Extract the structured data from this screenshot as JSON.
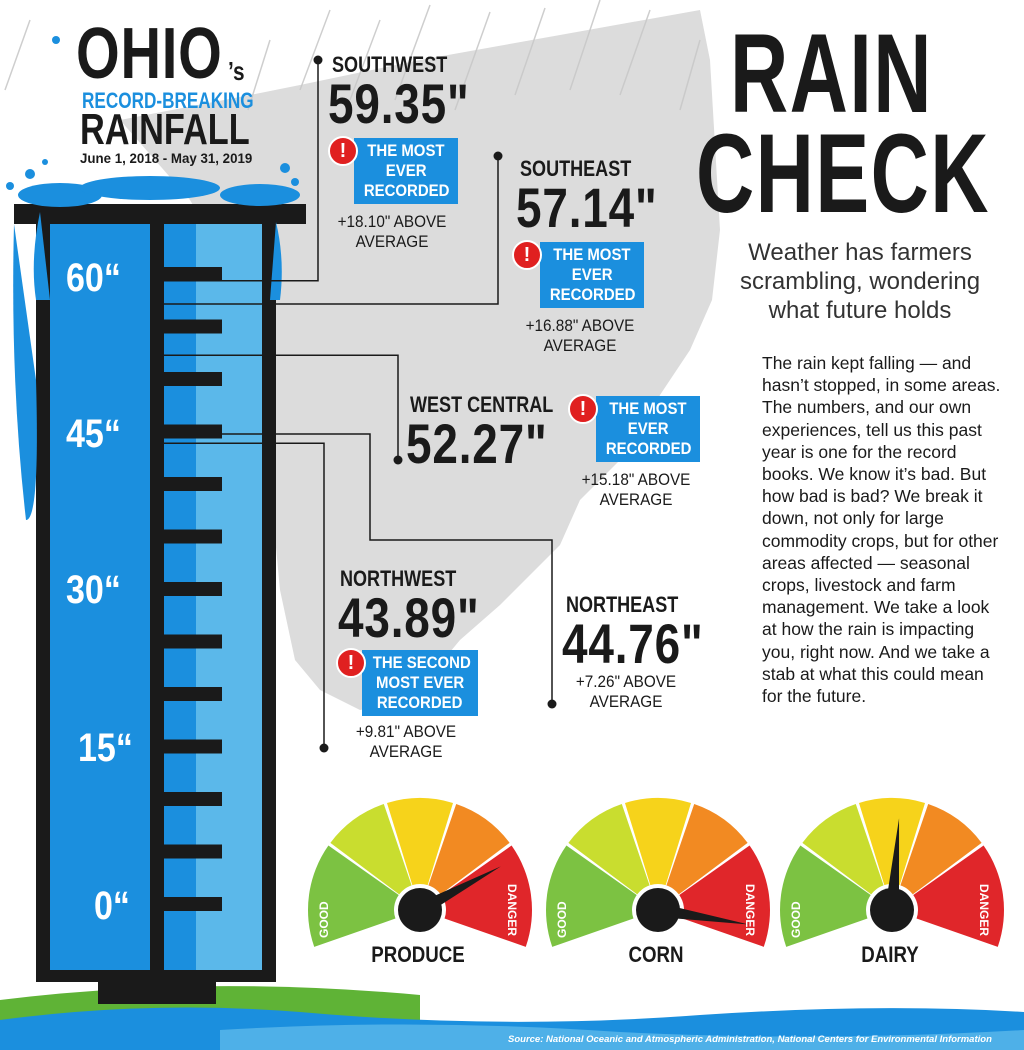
{
  "header": {
    "ohio": "OHIO",
    "possessive": "’s",
    "subtitle": "RECORD-BREAKING",
    "rainfall": "RAINFALL",
    "date_range": "June 1, 2018 - May 31, 2019"
  },
  "headline": {
    "line1": "RAIN",
    "line2": "CHECK",
    "deck": "Weather has farmers scrambling, wondering what future holds"
  },
  "scale": {
    "labels": [
      "60“",
      "45“",
      "30“",
      "15“",
      "0“"
    ],
    "min_inches": 0,
    "max_inches": 60
  },
  "regions": [
    {
      "name": "SOUTHWEST",
      "value": "59.35\"",
      "inches": 59.35,
      "badge": "THE MOST EVER RECORDED",
      "badge_lines": [
        "THE MOST",
        "EVER",
        "RECORDED"
      ],
      "above_lines": [
        "+18.10\" ABOVE",
        "AVERAGE"
      ]
    },
    {
      "name": "SOUTHEAST",
      "value": "57.14\"",
      "inches": 57.14,
      "badge": "THE MOST EVER RECORDED",
      "badge_lines": [
        "THE MOST",
        "EVER",
        "RECORDED"
      ],
      "above_lines": [
        "+16.88\" ABOVE",
        "AVERAGE"
      ]
    },
    {
      "name": "WEST CENTRAL",
      "value": "52.27\"",
      "inches": 52.27,
      "badge": "THE MOST EVER RECORDED",
      "badge_lines": [
        "THE MOST",
        "EVER",
        "RECORDED"
      ],
      "above_lines": [
        "+15.18\" ABOVE",
        "AVERAGE"
      ]
    },
    {
      "name": "NORTHWEST",
      "value": "43.89\"",
      "inches": 43.89,
      "badge": "THE SECOND MOST EVER RECORDED",
      "badge_lines": [
        "THE SECOND",
        "MOST EVER",
        "RECORDED"
      ],
      "above_lines": [
        "+9.81\" ABOVE",
        "AVERAGE"
      ]
    },
    {
      "name": "NORTHEAST",
      "value": "44.76\"",
      "inches": 44.76,
      "badge": "",
      "badge_lines": [],
      "above_lines": [
        "+7.26\" ABOVE",
        "AVERAGE"
      ]
    }
  ],
  "article": {
    "text": "The rain kept falling — and hasn’t stopped, in some areas. The numbers, and our own experiences, tell us this past year is one for the record books. We know it’s bad. But how bad is bad? We break it down, not only for large commodity crops, but for other areas affected — seasonal crops, livestock and farm management. We take a look at how the rain is impacting you, right now. And we take a stab at what this could mean for the future."
  },
  "gauges": [
    {
      "label": "PRODUCE",
      "good": "GOOD",
      "danger": "DANGER",
      "level": 0.78
    },
    {
      "label": "CORN",
      "good": "GOOD",
      "danger": "DANGER",
      "level": 0.95
    },
    {
      "label": "DAIRY",
      "good": "GOOD",
      "danger": "DANGER",
      "level": 0.52
    }
  ],
  "gauge_colors": [
    "#7cc242",
    "#c9dd2f",
    "#f6d31b",
    "#f28a22",
    "#e0262a"
  ],
  "colors": {
    "tube_blue": "#1b8fde",
    "tube_light": "#5bb8ea",
    "map_gray": "#dcdcdc",
    "grass": "#5fb336",
    "water": "#1b8fde"
  },
  "source": "Source: National Oceanic and Atmospheric Administration, National Centers for Environmental Information"
}
